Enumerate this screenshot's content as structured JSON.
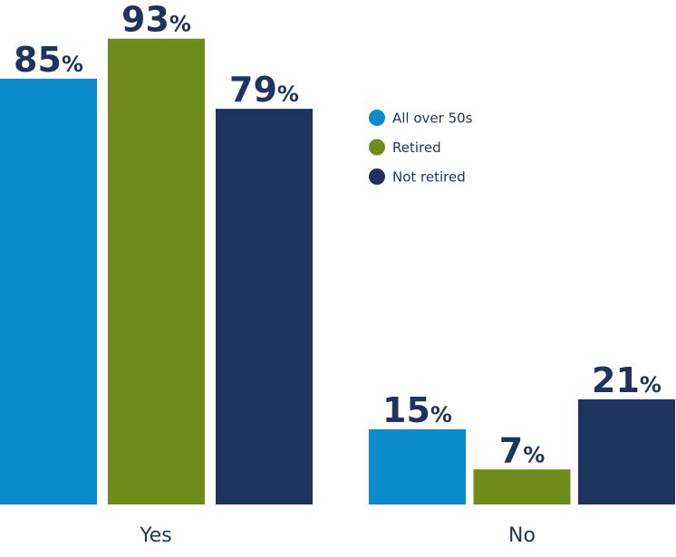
{
  "chart_data": {
    "type": "bar",
    "categories": [
      "Yes",
      "No"
    ],
    "series": [
      {
        "name": "All over 50s",
        "values": [
          85,
          15
        ],
        "color": "#0a8bcb"
      },
      {
        "name": "Retired",
        "values": [
          93,
          7
        ],
        "color": "#6f8c1a"
      },
      {
        "name": "Not retired",
        "values": [
          79,
          21
        ],
        "color": "#1e345e"
      }
    ],
    "value_suffix": "%",
    "ylim": [
      0,
      100
    ],
    "grid": false,
    "axes_visible": false,
    "legend": "right of first group, upper middle",
    "data_labels": true
  }
}
